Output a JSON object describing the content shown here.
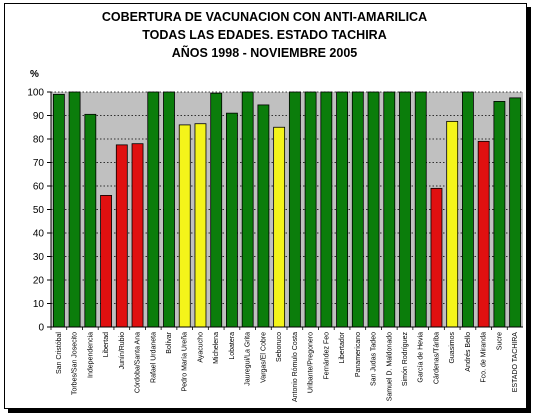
{
  "title_lines": [
    "COBERTURA DE VACUNACION CON ANTI-AMARILICA",
    "TODAS LAS EDADES. ESTADO TACHIRA",
    "AÑOS 1998 - NOVIEMBRE 2005"
  ],
  "colors": {
    "green": "#0b7d0b",
    "red": "#e01010",
    "yellow": "#f4f41a",
    "plot_bg": "#c0c0c0",
    "grid": "#000000"
  },
  "chart_data": {
    "type": "bar",
    "title": "COBERTURA DE VACUNACION CON ANTI-AMARILICA TODAS LAS EDADES. ESTADO TACHIRA AÑOS 1998 - NOVIEMBRE 2005",
    "ylabel": "%",
    "xlabel": "",
    "ylim": [
      0,
      100
    ],
    "yticks": [
      0,
      10,
      20,
      30,
      40,
      50,
      60,
      70,
      80,
      90,
      100
    ],
    "grid": "horizontal dotted",
    "categories": [
      "San Cristóbal",
      "Torbes/San Josecito",
      "Independencia",
      "Libertad",
      "Junín/Rubio",
      "Córdoba/Santa Ana",
      "Rafael Urdaneta",
      "Bolívar",
      "Pedro María Ureña",
      "Ayacucho",
      "Michelena",
      "Lobatera",
      "Jauregui/La Grita",
      "Vargas/El Cobre",
      "Seboruco",
      "Antonio Rómulo Costa",
      "Uribante/Pregonero",
      "Fernández Feo",
      "Libertador",
      "Panamericano",
      "San Judas Tadeo",
      "Samuel D. Maldonado",
      "Simón Rodríguez",
      "García de Hevia",
      "Cárdenas/Táriba",
      "Guasimos",
      "Andrés Bello",
      "Fco. de Miranda",
      "Sucre",
      "ESTADO TACHIRA"
    ],
    "values": [
      99,
      100,
      90.5,
      56,
      77.5,
      78,
      100,
      100,
      86,
      86.5,
      99.5,
      91,
      100,
      94.5,
      85,
      100,
      100,
      100,
      100,
      100,
      100,
      100,
      100,
      100,
      59,
      87.5,
      100,
      79,
      96,
      97.5
    ],
    "bar_colors": [
      "green",
      "green",
      "green",
      "red",
      "red",
      "red",
      "green",
      "green",
      "yellow",
      "yellow",
      "green",
      "green",
      "green",
      "green",
      "yellow",
      "green",
      "green",
      "green",
      "green",
      "green",
      "green",
      "green",
      "green",
      "green",
      "red",
      "yellow",
      "green",
      "red",
      "green",
      "green"
    ]
  }
}
